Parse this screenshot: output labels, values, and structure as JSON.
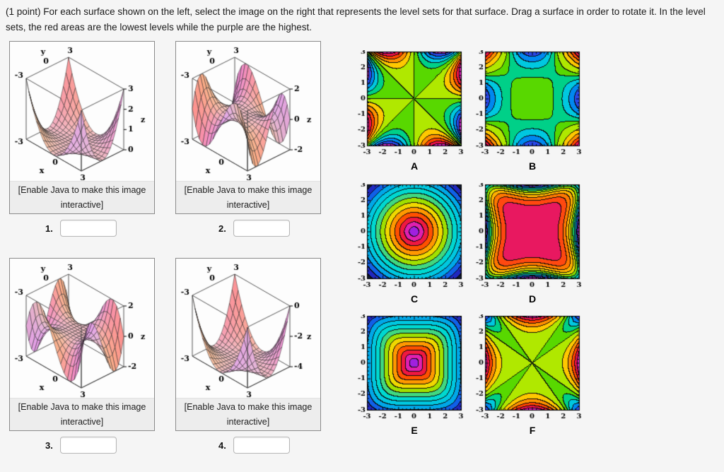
{
  "header": {
    "text": "(1 point) For each surface shown on the left, select the image on the right that represents the level sets for that surface. Drag a surface in order to rotate it. In the level sets, the red areas are the lowest levels while the purple are the highest."
  },
  "caption": {
    "line1": "[Enable Java to make this image",
    "line2": "interactive]"
  },
  "colors": {
    "page_bg": "#f5f5f5",
    "panel_border": "#8a8a8a",
    "caption_bg": "#ededed",
    "input_border": "#b7b7b7",
    "contour_frame": "#000000",
    "box_edge": "#555555"
  },
  "surf_axes": {
    "x_label": "x",
    "y_label": "y",
    "z_label": "z",
    "x_ticks": [
      {
        "v": -3,
        "t": "-3"
      },
      {
        "v": 0,
        "t": "0"
      },
      {
        "v": 3,
        "t": "3"
      }
    ],
    "y_ticks": [
      {
        "v": -3,
        "t": "-3"
      },
      {
        "v": 0,
        "t": "0"
      },
      {
        "v": 3,
        "t": "3"
      }
    ]
  },
  "surfaces": [
    {
      "number": "1.",
      "fn": "return x*x*y*y/27;",
      "z_range": [
        0,
        3
      ],
      "z_ticks": [
        {
          "v": 3,
          "t": "3"
        },
        {
          "v": 2,
          "t": "2"
        },
        {
          "v": 1,
          "t": "1"
        },
        {
          "v": 0,
          "t": "0"
        }
      ]
    },
    {
      "number": "2.",
      "fn": "return x*y*(x*x-y*y)/15.6;",
      "z_range": [
        -2,
        2
      ],
      "z_ticks": [
        {
          "v": 2,
          "t": "2"
        },
        {
          "v": 0,
          "t": "0"
        },
        {
          "v": -2,
          "t": "-2"
        }
      ]
    },
    {
      "number": "3.",
      "fn": "return -x*y*(x*x-y*y)/15.6;",
      "z_range": [
        -2,
        2
      ],
      "z_ticks": [
        {
          "v": 2,
          "t": "2"
        },
        {
          "v": 0,
          "t": "0"
        },
        {
          "v": -2,
          "t": "-2"
        }
      ]
    },
    {
      "number": "4.",
      "fn": "return x*x*y*y/20.25 - 4;",
      "z_range": [
        -4,
        0
      ],
      "z_ticks": [
        {
          "v": 0,
          "t": "0"
        },
        {
          "v": -2,
          "t": "-2"
        },
        {
          "v": -4,
          "t": "-4"
        }
      ]
    }
  ],
  "inputs": [
    {
      "label": "1.",
      "value": ""
    },
    {
      "label": "2.",
      "value": ""
    },
    {
      "label": "3.",
      "value": ""
    },
    {
      "label": "4.",
      "value": ""
    }
  ],
  "contour_axes": {
    "x_ticks": [
      "-3",
      "-2",
      "-1",
      "0",
      "1",
      "2",
      "3"
    ],
    "y_ticks": [
      "3",
      "2",
      "1",
      "0",
      "-1",
      "-2",
      "-3"
    ]
  },
  "palettes": {
    "star": [
      "#e020c0",
      "#f01048",
      "#ff4400",
      "#ff9000",
      "#ffc800",
      "#b0e800",
      "#58d800",
      "#00d088",
      "#00c8e0",
      "#0088f0",
      "#2848e8",
      "#c828c8"
    ],
    "radial": [
      "#101830",
      "#2028c0",
      "#1060e8",
      "#00a8e8",
      "#00c8e0",
      "#00d8d0",
      "#40d880",
      "#a0e000",
      "#f0d800",
      "#ff9800",
      "#ff5000",
      "#f01840",
      "#e020b0",
      "#a020e0"
    ],
    "quartic": [
      "#e81860",
      "#ff4810",
      "#ff7800",
      "#ffb000",
      "#e8d800",
      "#88d800",
      "#18c860",
      "#00c0c0",
      "#1070f0",
      "#6030e8",
      "#c020d0"
    ]
  },
  "contours": [
    {
      "label": "A",
      "palette": "star",
      "fn": "return -(x*y*(x*x-y*y))/31.2;"
    },
    {
      "label": "B",
      "palette": "star",
      "fn": "var v=x*x+y*y-0.5*x*x*y*y; return v>=0 ? v/11 : v/23;"
    },
    {
      "label": "C",
      "palette": "radial",
      "fn": "var r=Math.sqrt(x*x+y*y); return 1-2*r/4.3;"
    },
    {
      "label": "D",
      "palette": "quartic",
      "fn": "var v=x*x*x*x+y*y*y*y-1.2*x*x*y*y; return v/41-1;"
    },
    {
      "label": "E",
      "palette": "radial",
      "fn": "var q=Math.pow(x*x*x*x+y*y*y*y,0.25); return 1-2*q/3.8;"
    },
    {
      "label": "F",
      "palette": "star",
      "fn": "var v=x*x*y*y-0.4*(x*x*x*x+y*y*y*y); return v>=0 ? v/20 : v/33;"
    }
  ]
}
